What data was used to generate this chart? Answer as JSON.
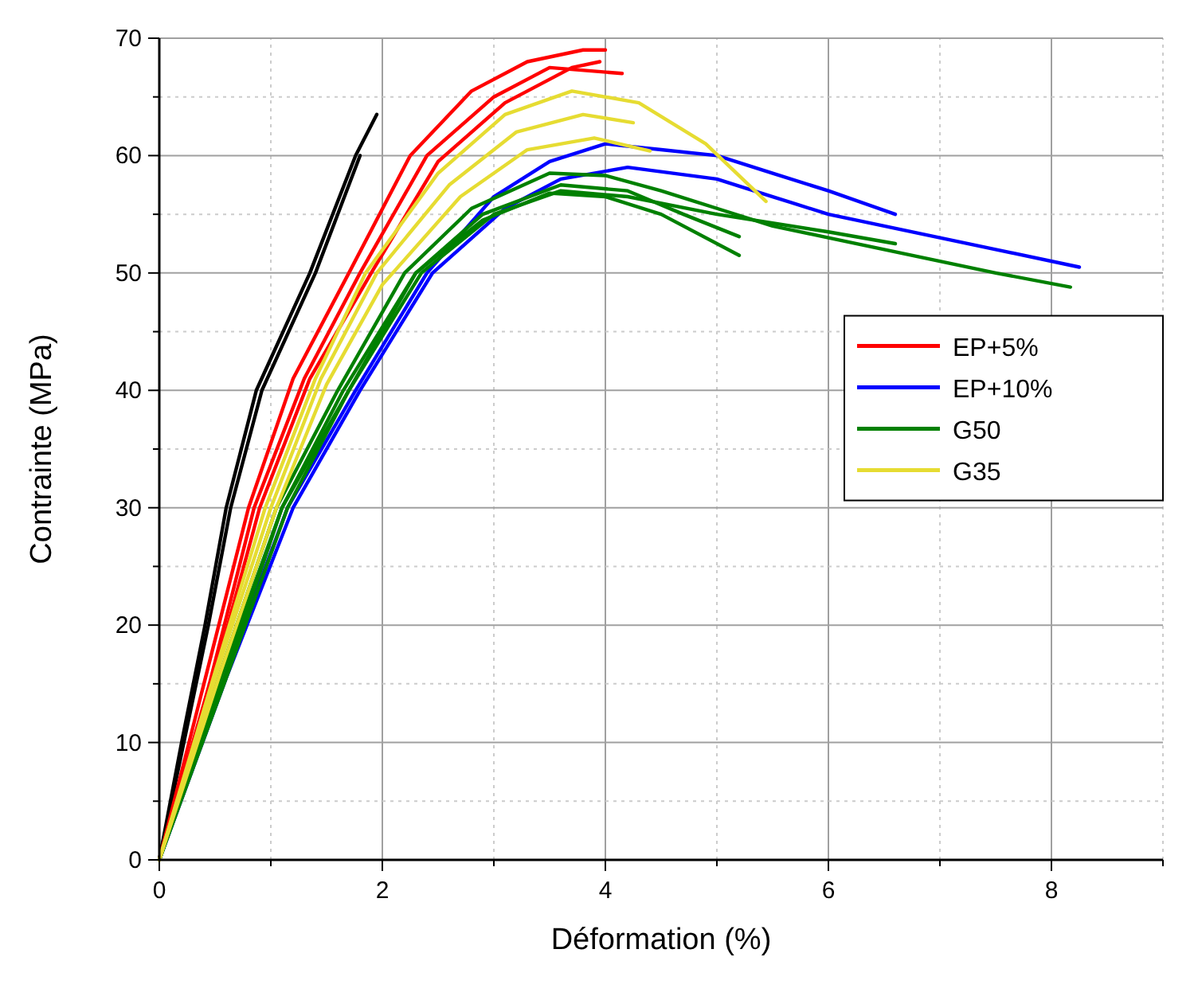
{
  "chart_data": {
    "type": "line",
    "xlabel": "Déformation (%)",
    "ylabel": "Contrainte (MPa)",
    "xlim": [
      0,
      9
    ],
    "ylim": [
      0,
      70
    ],
    "xticks": [
      0,
      {
        "value": 1,
        "label": null
      },
      2,
      {
        "value": 3,
        "label": null
      },
      4,
      {
        "value": 5,
        "label": null
      },
      6,
      {
        "value": 7,
        "label": null
      },
      8,
      {
        "value": 9,
        "label": null
      }
    ],
    "yticks": [
      0,
      {
        "value": 5,
        "label": null
      },
      10,
      {
        "value": 15,
        "label": null
      },
      20,
      {
        "value": 25,
        "label": null
      },
      30,
      {
        "value": 35,
        "label": null
      },
      40,
      {
        "value": 45,
        "label": null
      },
      50,
      {
        "value": 55,
        "label": null
      },
      60,
      {
        "value": 65,
        "label": null
      },
      70
    ],
    "grid": true,
    "legend": "right",
    "marker": "none",
    "line_style": "solid",
    "series": [
      {
        "color": "#000000",
        "x": [
          0,
          0.2,
          0.41,
          0.6,
          0.87,
          1.35,
          1.76,
          1.95
        ],
        "values": [
          0,
          10,
          20,
          30,
          40,
          50,
          60,
          63.5
        ]
      },
      {
        "color": "#000000",
        "x": [
          0,
          0.22,
          0.44,
          0.64,
          0.92,
          1.4,
          1.8
        ],
        "values": [
          0,
          10,
          20,
          30,
          40,
          50,
          60
        ]
      },
      {
        "name": "EP+5%",
        "color": "#ff0000",
        "x": [
          0,
          0.4,
          0.8,
          1.2,
          1.7,
          2.25,
          2.8,
          3.3,
          3.8,
          4.0
        ],
        "values": [
          0,
          15,
          30,
          41,
          50,
          60,
          65.5,
          68,
          69,
          69
        ]
      },
      {
        "color": "#ff0000",
        "x": [
          0,
          0.45,
          0.85,
          1.3,
          1.8,
          2.4,
          3,
          3.5,
          4.15
        ],
        "values": [
          0,
          15,
          30,
          41,
          50,
          60,
          65,
          67.5,
          67
        ]
      },
      {
        "color": "#ff0000",
        "x": [
          0,
          0.5,
          0.9,
          1.35,
          1.9,
          2.5,
          3.1,
          3.7,
          3.95
        ],
        "values": [
          0,
          16,
          30,
          41,
          50,
          59.5,
          64.5,
          67.5,
          68
        ]
      },
      {
        "name": "EP+10%",
        "color": "#0000ff",
        "x": [
          0,
          0.6,
          1.15,
          1.76,
          2.4,
          3,
          3.5,
          4,
          4.5,
          5,
          5.5,
          6,
          6.6
        ],
        "values": [
          0,
          16,
          30,
          40,
          50,
          56.5,
          59.5,
          61,
          60.5,
          60,
          58.5,
          57,
          55
        ]
      },
      {
        "color": "#0000ff",
        "x": [
          0,
          0.6,
          1.2,
          1.8,
          2.45,
          3.1,
          3.6,
          4.2,
          5,
          5.5,
          6,
          6.5,
          7,
          7.5,
          8.25
        ],
        "values": [
          0,
          15.5,
          30,
          40,
          50,
          55.5,
          58,
          59,
          58,
          56.5,
          55,
          54,
          53,
          52,
          50.5
        ]
      },
      {
        "name": "G50",
        "color": "#008000",
        "x": [
          0,
          0.55,
          1.05,
          1.6,
          2.2,
          2.8,
          3.5,
          4,
          4.5,
          5,
          5.5,
          6,
          6.5,
          7,
          7.5,
          8.17
        ],
        "values": [
          0,
          16,
          30,
          40,
          50,
          55.5,
          58.5,
          58.3,
          57,
          55.5,
          54,
          53,
          52,
          51,
          50,
          48.8
        ]
      },
      {
        "color": "#008000",
        "x": [
          0,
          0.55,
          1.1,
          1.65,
          2.3,
          2.9,
          3.5,
          4,
          4.5,
          5.2
        ],
        "values": [
          0,
          15.5,
          30,
          40,
          50,
          54.5,
          56.8,
          56.5,
          55,
          51.5
        ]
      },
      {
        "color": "#008000",
        "x": [
          0,
          0.6,
          1.1,
          1.7,
          2.3,
          2.9,
          3.6,
          4.2,
          4.7,
          5.2
        ],
        "values": [
          0,
          16,
          30,
          40,
          50,
          55,
          57.5,
          57,
          55,
          53.1
        ]
      },
      {
        "color": "#008000",
        "x": [
          0,
          0.6,
          1.15,
          1.7,
          2.35,
          3,
          3.6,
          4.2,
          5,
          6,
          6.6
        ],
        "values": [
          0,
          15.5,
          30,
          40,
          50,
          55,
          57,
          56.5,
          55,
          53.5,
          52.5
        ]
      },
      {
        "name": "G35",
        "color": "#e6dc32",
        "x": [
          0,
          0.5,
          0.95,
          1.4,
          1.85,
          2.5,
          3.1,
          3.7,
          4.3,
          4.9,
          5.44
        ],
        "values": [
          0,
          16,
          30,
          41,
          50,
          58.5,
          63.5,
          65.5,
          64.5,
          61,
          56.1
        ]
      },
      {
        "color": "#e6dc32",
        "x": [
          0,
          0.5,
          1,
          1.45,
          1.95,
          2.6,
          3.2,
          3.8,
          4.25
        ],
        "values": [
          0,
          15.5,
          30,
          41,
          50,
          57.5,
          62,
          63.5,
          62.8
        ]
      },
      {
        "color": "#e6dc32",
        "x": [
          0,
          0.55,
          1.05,
          1.5,
          2,
          2.7,
          3.3,
          3.9,
          4.4
        ],
        "values": [
          0,
          16,
          30,
          40.5,
          49,
          56.5,
          60.5,
          61.5,
          60.4
        ]
      }
    ]
  }
}
